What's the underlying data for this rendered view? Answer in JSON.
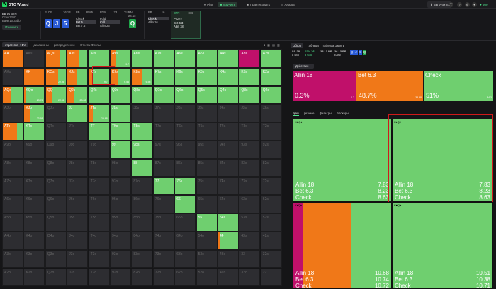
{
  "app": {
    "title": "GTO Wizard",
    "logo": "W"
  },
  "nav": [
    {
      "label": "Play"
    },
    {
      "label": "Изучить"
    },
    {
      "label": "Практиковать"
    },
    {
      "label": "Анализ"
    }
  ],
  "topright": {
    "upload": "Загрузить",
    "balance": "500"
  },
  "subbar": {
    "info": {
      "line1": "BB vs BTN",
      "line2": "Стек 33bb",
      "line3": "Банк 10.33bb",
      "btn": "Изменить"
    },
    "flop": {
      "label": "FLOP",
      "pot": "16.13",
      "cards": [
        {
          "r": "Q",
          "c": "#2a5bd7"
        },
        {
          "r": "J",
          "c": "#2a5bd7"
        },
        {
          "r": "5",
          "c": "#2a5bd7"
        }
      ]
    },
    "bb": {
      "pos": "BB",
      "stack": "8585",
      "actions": [
        "Check",
        "Bet 5",
        "Bet 7.6"
      ]
    },
    "btn": {
      "pos": "BTN",
      "stack": "23",
      "actions": [
        "Fold",
        "Call",
        "Allin 23"
      ]
    },
    "turn": {
      "label": "TURN",
      "pot": "26.13",
      "card": {
        "r": "Q",
        "c": "#1ea448"
      }
    },
    "bb2": {
      "pos": "BB",
      "stack": "16",
      "actions": [
        "Check",
        "Allin 16"
      ]
    },
    "btn2": {
      "pos": "BTN",
      "stack": "8.6",
      "actions": [
        "Check",
        "Bet 6.3",
        "Allin 18"
      ]
    }
  },
  "toolbar": {
    "strategy": "стратегия + EV",
    "ranges": "диапазоны",
    "distribution": "распределение",
    "reports": "Отчеты Флопы"
  },
  "grid": [
    [
      "AA",
      "AKs",
      "AQs",
      "AJs",
      "ATs",
      "A9s",
      "A8s",
      "A7s",
      "A6s",
      "A5s",
      "A4s",
      "A3s",
      "A2s"
    ],
    [
      "AKo",
      "KK",
      "KQs",
      "KJs",
      "KTs",
      "K9s",
      "K8s",
      "K7s",
      "K6s",
      "K5s",
      "K4s",
      "K3s",
      "K2s"
    ],
    [
      "AQo",
      "KQo",
      "QQ",
      "QJs",
      "QTs",
      "Q9s",
      "Q8s",
      "Q7s",
      "Q6s",
      "Q5s",
      "Q4s",
      "Q3s",
      "Q2s"
    ],
    [
      "AJo",
      "KJo",
      "QJo",
      "JJ",
      "JTs",
      "J9s",
      "J8s",
      "J7s",
      "J6s",
      "J5s",
      "J4s",
      "J3s",
      "J2s"
    ],
    [
      "ATo",
      "KTo",
      "QTo",
      "JTo",
      "TT",
      "T9s",
      "T8s",
      "T7s",
      "T6s",
      "T5s",
      "T4s",
      "T3s",
      "T2s"
    ],
    [
      "A9o",
      "K9o",
      "Q9o",
      "J9o",
      "T9o",
      "99",
      "98s",
      "97s",
      "96s",
      "95s",
      "94s",
      "93s",
      "92s"
    ],
    [
      "A8o",
      "K8o",
      "Q8o",
      "J8o",
      "T8o",
      "98o",
      "88",
      "87s",
      "86s",
      "85s",
      "84s",
      "83s",
      "82s"
    ],
    [
      "A7o",
      "K7o",
      "Q7o",
      "J7o",
      "T7o",
      "97o",
      "87o",
      "77",
      "76s",
      "75s",
      "74s",
      "73s",
      "72s"
    ],
    [
      "A6o",
      "K6o",
      "Q6o",
      "J6o",
      "T6o",
      "96o",
      "86o",
      "76o",
      "66",
      "65s",
      "64s",
      "63s",
      "62s"
    ],
    [
      "A5o",
      "K5o",
      "Q5o",
      "J5o",
      "T5o",
      "95o",
      "85o",
      "75o",
      "65o",
      "55",
      "54s",
      "53s",
      "52s"
    ],
    [
      "A4o",
      "K4o",
      "Q4o",
      "J4o",
      "T4o",
      "94o",
      "84o",
      "74o",
      "64o",
      "54o",
      "44",
      "43s",
      "42s"
    ],
    [
      "A3o",
      "K3o",
      "Q3o",
      "J3o",
      "T3o",
      "93o",
      "83o",
      "73o",
      "63o",
      "53o",
      "43o",
      "33",
      "32s"
    ],
    [
      "A2o",
      "K2o",
      "Q2o",
      "J2o",
      "T2o",
      "92o",
      "82o",
      "72o",
      "62o",
      "52o",
      "42o",
      "32o",
      "22"
    ]
  ],
  "cellev": {
    "KQs": "22.98",
    "QQ": "22.98",
    "KQo": "23.76",
    "KJo": "23.68",
    "QJs": "23.68",
    "JTs": "23.68",
    "KTs": "9.7",
    "K9s": "6.56",
    "A9s": "9.7",
    "K8s": "6.56"
  },
  "colors": {
    "allin": "#c0106a",
    "bet": "#f07818",
    "check": "#6fcf6f"
  },
  "right": {
    "tabs": [
      "Обзор",
      "Таблица",
      "Таблица Эквити"
    ],
    "hdr": [
      {
        "pos": "BB",
        "v": "28",
        "sub": "8 585"
      },
      {
        "pos": "BTN",
        "v": "16",
        "sub": "8 635"
      },
      {
        "pos": "",
        "v": "25.13 BB",
        "sub": ""
      },
      {
        "pos": "",
        "v": "26.13 BB",
        "sub": "Банк"
      }
    ],
    "actions_btn": "Действия",
    "strategies": [
      {
        "name": "Allin 18",
        "pct": "0.3%",
        "ev": "0.2"
      },
      {
        "name": "Bet 6.3",
        "pct": "48.7%",
        "ev": "33.98"
      },
      {
        "name": "Check",
        "pct": "51%",
        "ev": "34.3"
      }
    ],
    "tabs2": [
      "руки",
      "резюме",
      "фильтры",
      "Блокеры"
    ],
    "combos": [
      {
        "cards": "K♣Q♦",
        "rows": [
          [
            "Allin 18",
            "7.83"
          ],
          [
            "Bet 6.3",
            "8.23"
          ],
          [
            "Check",
            "8.63"
          ]
        ]
      },
      {
        "cards": "K♦Q♥",
        "rows": [
          [
            "Allin 18",
            "7.83"
          ],
          [
            "Bet 6.3",
            "8.23"
          ],
          [
            "Check",
            "8.63"
          ]
        ]
      },
      {
        "cards": "K♠Q♠",
        "rows": [
          [
            "Allin 18",
            "10.68"
          ],
          [
            "Bet 6.3",
            "10.74"
          ],
          [
            "Check",
            "10.72"
          ]
        ]
      },
      {
        "cards": "K♥Q♠",
        "rows": [
          [
            "Allin 18",
            "10.51"
          ],
          [
            "Bet 6.3",
            "10.38"
          ],
          [
            "Check",
            "10.71"
          ]
        ]
      }
    ]
  }
}
